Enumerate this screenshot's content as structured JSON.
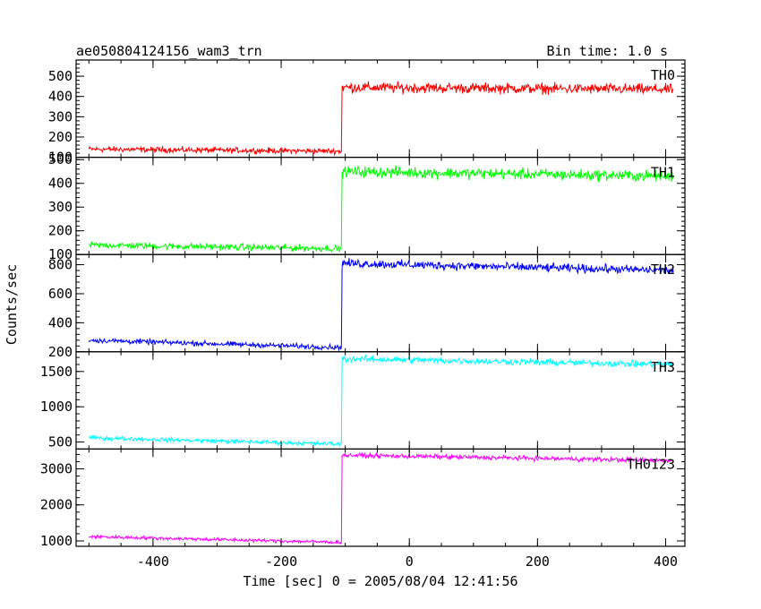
{
  "chart_data": {
    "type": "line",
    "title": "ae050804124156_wam3_trn",
    "subtitle": "Bin time: 1.0 s",
    "xlabel": "Time [sec] 0 = 2005/08/04 12:41:56",
    "ylabel": "Counts/sec",
    "xlim": [
      -520,
      430
    ],
    "x_ticks": [
      -400,
      -200,
      0,
      200,
      400
    ],
    "grid": false,
    "step_time": -105,
    "data_range": [
      -500,
      412
    ],
    "panels": [
      {
        "name": "TH0",
        "color": "#ff0000",
        "ylim": [
          100,
          580
        ],
        "yticks": [
          100,
          200,
          300,
          400,
          500
        ],
        "before": {
          "start": 140,
          "end": 130,
          "noise": 12
        },
        "after": {
          "start": 445,
          "end": 435,
          "noise": 22
        }
      },
      {
        "name": "TH1",
        "color": "#00ff00",
        "ylim": [
          100,
          510
        ],
        "yticks": [
          100,
          200,
          300,
          400,
          500
        ],
        "before": {
          "start": 140,
          "end": 125,
          "noise": 12
        },
        "after": {
          "start": 450,
          "end": 430,
          "noise": 20
        }
      },
      {
        "name": "TH2",
        "color": "#0000ff",
        "ylim": [
          200,
          870
        ],
        "yticks": [
          200,
          400,
          600,
          800
        ],
        "before": {
          "start": 280,
          "end": 230,
          "noise": 15
        },
        "after": {
          "start": 810,
          "end": 760,
          "noise": 25
        }
      },
      {
        "name": "TH3",
        "color": "#00ffff",
        "ylim": [
          400,
          1780
        ],
        "yticks": [
          500,
          1000,
          1500
        ],
        "before": {
          "start": 560,
          "end": 470,
          "noise": 25
        },
        "after": {
          "start": 1680,
          "end": 1600,
          "noise": 40
        }
      },
      {
        "name": "TH0123",
        "color": "#ff00ff",
        "ylim": [
          850,
          3550
        ],
        "yticks": [
          1000,
          2000,
          3000
        ],
        "before": {
          "start": 1120,
          "end": 960,
          "noise": 40
        },
        "after": {
          "start": 3380,
          "end": 3230,
          "noise": 55
        }
      }
    ]
  }
}
